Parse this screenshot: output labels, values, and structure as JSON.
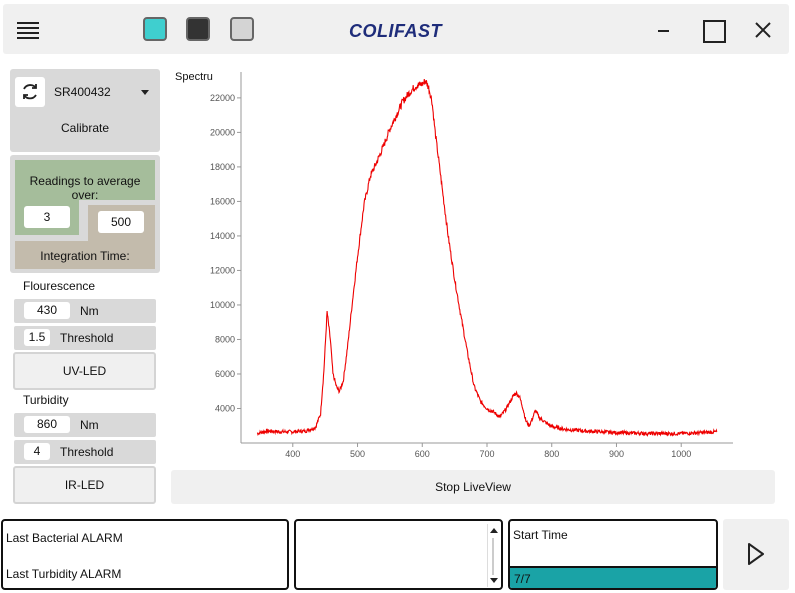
{
  "app": {
    "logo_text": "COLIFAST"
  },
  "theme_swatches": [
    {
      "name": "theme-swatch-teal",
      "color": "#3fcfcf"
    },
    {
      "name": "theme-swatch-dark",
      "color": "#333333"
    },
    {
      "name": "theme-swatch-light",
      "color": "#d4d4d4"
    }
  ],
  "device": {
    "serial": "SR400432",
    "calibrate_label": "Calibrate"
  },
  "readings": {
    "label": "Readings to average over:",
    "count": "3",
    "integration_time": "500",
    "integration_label": "Integration Time:"
  },
  "fluorescence": {
    "label": "Flourescence",
    "wavelength": "430",
    "unit": "Nm",
    "threshold": "1.5",
    "threshold_label": "Threshold",
    "led_label": "UV-LED"
  },
  "turbidity": {
    "label": "Turbidity",
    "wavelength": "860",
    "unit": "Nm",
    "threshold": "4",
    "threshold_label": "Threshold",
    "led_label": "IR-LED"
  },
  "chart_title": "Spectrum",
  "stop_label": "Stop LiveView",
  "alarms": {
    "bacterial": "Last Bacterial ALARM",
    "turbidity": "Last Turbidity ALARM"
  },
  "start": {
    "label": "Start Time",
    "progress_text": "7/7",
    "progress_fraction": 1.0,
    "progress_color": "#1aa3a6"
  },
  "chart_data": {
    "type": "line",
    "title": "",
    "xlabel": "",
    "ylabel": "",
    "xlim": [
      320,
      1080
    ],
    "ylim": [
      2000,
      23500
    ],
    "xticks": [
      400,
      500,
      600,
      700,
      800,
      900,
      1000
    ],
    "yticks": [
      4000,
      6000,
      8000,
      10000,
      12000,
      14000,
      16000,
      18000,
      20000,
      22000
    ],
    "grid": false,
    "series": [
      {
        "color": "#ee0000",
        "x": [
          345,
          360,
          380,
          400,
          420,
          435,
          443,
          448,
          453,
          458,
          462,
          468,
          472,
          478,
          485,
          493,
          500,
          510,
          520,
          530,
          540,
          550,
          560,
          570,
          580,
          590,
          600,
          605,
          610,
          615,
          620,
          630,
          640,
          650,
          660,
          670,
          680,
          690,
          700,
          710,
          720,
          730,
          740,
          745,
          750,
          755,
          760,
          765,
          770,
          775,
          780,
          790,
          800,
          820,
          850,
          900,
          950,
          1000,
          1030,
          1055
        ],
        "y": [
          2550,
          2700,
          2650,
          2650,
          2700,
          2900,
          3700,
          6200,
          9600,
          8000,
          6000,
          5200,
          5000,
          5600,
          7700,
          10500,
          12800,
          15800,
          17500,
          18300,
          19200,
          20200,
          21000,
          21800,
          22300,
          22700,
          22800,
          23000,
          22600,
          21800,
          20000,
          17000,
          14000,
          11500,
          9300,
          7200,
          5300,
          4400,
          4000,
          3800,
          3500,
          4000,
          4700,
          4900,
          4700,
          4100,
          3300,
          3000,
          3400,
          3900,
          3500,
          3200,
          2950,
          2800,
          2700,
          2600,
          2550,
          2550,
          2600,
          2650
        ]
      }
    ]
  }
}
